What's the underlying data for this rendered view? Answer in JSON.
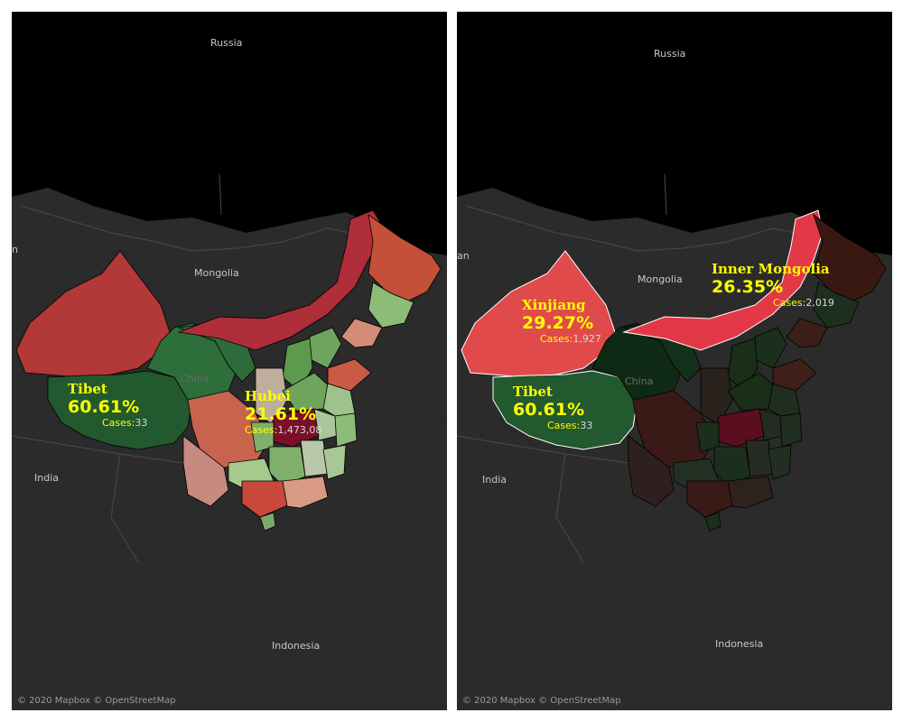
{
  "attribution": "© 2020 Mapbox © OpenStreetMap",
  "place_names": {
    "russia": "Russia",
    "mongolia": "Mongolia",
    "china": "China",
    "india": "India",
    "indonesia": "Indonesia",
    "edge_left": "n",
    "edge_right": "an"
  },
  "left_map": {
    "callouts": [
      {
        "region": "Tibet",
        "percent": "60.61%",
        "cases_label": "Cases:",
        "cases_value": "33"
      },
      {
        "region": "Hubei",
        "percent": "21.61%",
        "cases_label": "Cases:",
        "cases_value": "1,473,08"
      }
    ]
  },
  "right_map": {
    "callouts": [
      {
        "region": "Xinjiang",
        "percent": "29.27%",
        "cases_label": "Cases:",
        "cases_value": "1,927"
      },
      {
        "region": "Tibet",
        "percent": "60.61%",
        "cases_label": "Cases:",
        "cases_value": "33"
      },
      {
        "region": "Inner Mongolia",
        "percent": "26.35%",
        "cases_label": "Cases:",
        "cases_value": "2,019"
      }
    ]
  },
  "colors": {
    "ocean": "#000000",
    "land": "#2b2b2b",
    "label_highlight": "#ffff00",
    "strong_red": "#b83434",
    "bright_red": "#e0404a",
    "dark_green": "#1f5a2f",
    "light_green": "#8dbb78"
  }
}
